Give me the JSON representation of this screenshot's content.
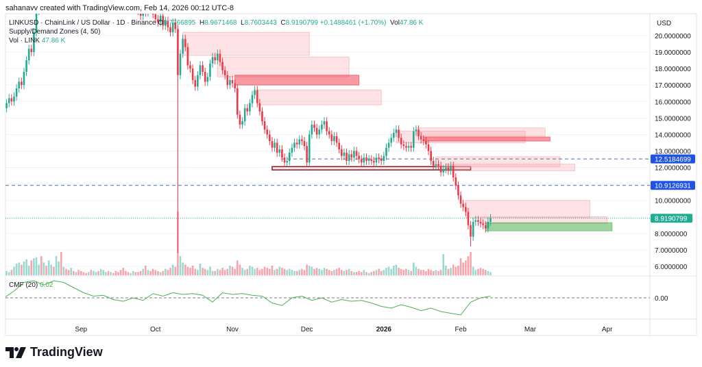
{
  "header": {
    "credit": "sahanavv created with TradingView.com, Feb 14, 2026 00:12 UTC-8"
  },
  "legend": {
    "symbol": "LINKUSD · ChainLink / US Dollar · 1D · Binance",
    "o_label": "O",
    "o": "8.7766895",
    "h_label": "H",
    "h": "8.9671468",
    "l_label": "L",
    "l": "8.7603443",
    "c_label": "C",
    "c": "8.9190799",
    "change": "+0.1488461 (+1.70%)",
    "vol_label": "Vol",
    "vol": "47.86 K",
    "indicator": "Supply/Demand Zones (4, 50)",
    "volume_label": "Vol · LINK",
    "volume_value": "47.86 K"
  },
  "cmf": {
    "label": "CMF (20)",
    "value": "0.02",
    "zero_label": "0.00",
    "color": "#4caf50",
    "step_days": 4,
    "values": [
      0.0,
      0.08,
      0.18,
      0.2,
      0.15,
      0.2,
      0.18,
      0.12,
      0.06,
      0.02,
      0.03,
      -0.02,
      -0.04,
      0.0,
      -0.03,
      0.05,
      0.02,
      0.06,
      0.04,
      0.05,
      0.03,
      -0.05,
      0.06,
      0.04,
      0.05,
      0.03,
      0.02,
      -0.06,
      -0.09,
      0.0,
      0.02,
      -0.03,
      0.0,
      -0.05,
      -0.02,
      -0.04,
      -0.03,
      -0.06,
      -0.1,
      -0.12,
      -0.08,
      -0.11,
      -0.15,
      -0.12,
      -0.16,
      -0.18,
      -0.2,
      -0.05,
      0.0,
      0.02
    ]
  },
  "price_axis": {
    "currency": "USD",
    "ticks": [
      "20.0000000",
      "19.0000000",
      "18.0000000",
      "17.0000000",
      "16.0000000",
      "15.0000000",
      "14.0000000",
      "13.0000000",
      "12.0000000",
      "10.0000000",
      "8.0000000",
      "7.0000000",
      "6.0000000"
    ],
    "tick_values": [
      20,
      19,
      18,
      17,
      16,
      15,
      14,
      13,
      12,
      10,
      8,
      7,
      6
    ]
  },
  "price_lines": [
    {
      "label": "12.5184699",
      "value": 12.5184699,
      "color": "#1e53e5",
      "style": "dashed"
    },
    {
      "label": "10.9126931",
      "value": 10.9126931,
      "color": "#1e53e5",
      "style": "dashed"
    },
    {
      "label": "8.9190799",
      "value": 8.9190799,
      "color": "#22ab94",
      "style": "dotted"
    }
  ],
  "time_axis": [
    {
      "label": "Sep",
      "date": "2025-09-01"
    },
    {
      "label": "Oct",
      "date": "2025-10-01"
    },
    {
      "label": "Nov",
      "date": "2025-11-01"
    },
    {
      "label": "Dec",
      "date": "2025-12-01"
    },
    {
      "label": "2026",
      "date": "2026-01-01",
      "bold": true
    },
    {
      "label": "Feb",
      "date": "2026-02-01"
    },
    {
      "label": "Mar",
      "date": "2026-03-01"
    },
    {
      "label": "Apr",
      "date": "2026-04-01"
    }
  ],
  "colors": {
    "up": "#22ab94",
    "down": "#f23645",
    "supply_light": "#f7a1a8",
    "supply_strong": "#f23645",
    "demand": "#4caf50",
    "outline": "#801922"
  },
  "chart_data": {
    "type": "candlestick",
    "start_date": "2025-08-01",
    "closes": [
      15.6,
      15.9,
      16.2,
      16.0,
      16.3,
      16.8,
      17.2,
      17.0,
      17.8,
      18.5,
      19.2,
      19.0,
      20.2,
      21.5,
      22.4,
      22.0,
      23.0,
      22.5,
      23.2,
      24.0,
      23.5,
      24.5,
      25.0,
      24.3,
      24.8,
      24.0,
      23.6,
      24.2,
      23.8,
      24.5,
      24.0,
      23.5,
      23.0,
      22.6,
      22.8,
      22.4,
      22.9,
      23.1,
      22.7,
      23.4,
      23.8,
      24.1,
      23.9,
      24.3,
      24.0,
      23.6,
      23.2,
      22.8,
      22.5,
      22.0,
      21.6,
      21.9,
      22.3,
      21.8,
      21.5,
      21.2,
      21.7,
      21.4,
      22.0,
      21.8,
      21.3,
      21.0,
      20.8,
      21.2,
      20.6,
      20.9,
      20.5,
      20.2,
      20.8,
      20.4,
      17.6,
      18.9,
      19.8,
      19.3,
      18.2,
      18.0,
      17.3,
      16.9,
      17.6,
      18.2,
      17.8,
      17.2,
      17.5,
      18.3,
      18.7,
      18.5,
      18.9,
      18.4,
      17.9,
      17.6,
      17.0,
      17.3,
      17.1,
      16.8,
      15.2,
      14.6,
      14.8,
      15.6,
      15.4,
      15.9,
      16.4,
      16.7,
      15.9,
      15.4,
      14.8,
      14.3,
      14.0,
      13.6,
      13.2,
      13.5,
      12.9,
      13.1,
      12.6,
      12.3,
      12.4,
      12.9,
      13.2,
      13.5,
      13.4,
      13.7,
      13.6,
      13.3,
      12.3,
      14.0,
      14.6,
      14.4,
      14.0,
      14.3,
      14.6,
      14.8,
      14.2,
      14.0,
      13.6,
      13.9,
      13.5,
      13.1,
      12.7,
      12.9,
      12.4,
      12.8,
      12.6,
      13.0,
      12.7,
      12.5,
      12.3,
      12.6,
      12.4,
      12.5,
      12.4,
      12.3,
      12.6,
      12.5,
      12.4,
      12.7,
      13.2,
      13.5,
      13.8,
      14.1,
      14.3,
      13.8,
      13.4,
      13.3,
      13.2,
      13.3,
      13.2,
      14.2,
      14.3,
      13.9,
      13.7,
      13.6,
      13.4,
      13.0,
      12.4,
      12.1,
      12.2,
      12.1,
      11.7,
      11.9,
      12.0,
      11.8,
      12.1,
      11.4,
      10.9,
      10.3,
      9.8,
      9.6,
      9.3,
      8.5,
      7.8,
      8.7,
      8.8,
      8.7,
      8.6,
      8.5,
      8.3,
      8.7,
      8.9190799
    ],
    "notable_lows": [
      {
        "date": "2025-10-10",
        "low": 6.8
      },
      {
        "date": "2026-02-05",
        "low": 7.2
      }
    ],
    "volumes_k": [
      3,
      4,
      3,
      5,
      8,
      11,
      12,
      10,
      13,
      15,
      9,
      14,
      16,
      17,
      10,
      18,
      12,
      9,
      14,
      10,
      8,
      18,
      13,
      22,
      8,
      6,
      5,
      7,
      4,
      3,
      5,
      4,
      3,
      2,
      3,
      5,
      4,
      3,
      4,
      6,
      5,
      3,
      4,
      3,
      2,
      4,
      3,
      5,
      7,
      4,
      3,
      2,
      4,
      3,
      3,
      4,
      6,
      9,
      5,
      4,
      6,
      5,
      4,
      3,
      4,
      6,
      5,
      7,
      10,
      8,
      60,
      18,
      12,
      10,
      8,
      7,
      9,
      6,
      5,
      11,
      7,
      6,
      5,
      8,
      4,
      4,
      6,
      5,
      7,
      5,
      6,
      9,
      8,
      6,
      14,
      10,
      7,
      5,
      6,
      9,
      8,
      6,
      7,
      5,
      6,
      8,
      7,
      6,
      9,
      5,
      6,
      8,
      7,
      6,
      5,
      6,
      5,
      4,
      4,
      5,
      6,
      5,
      10,
      9,
      8,
      6,
      7,
      6,
      5,
      7,
      6,
      5,
      4,
      5,
      6,
      7,
      5,
      4,
      5,
      6,
      4,
      3,
      3,
      4,
      3,
      5,
      3,
      2,
      3,
      4,
      5,
      6,
      4,
      5,
      7,
      8,
      6,
      9,
      10,
      7,
      6,
      5,
      6,
      5,
      4,
      12,
      8,
      6,
      5,
      5,
      4,
      6,
      5,
      4,
      5,
      4,
      5,
      20,
      9,
      6,
      7,
      10,
      8,
      9,
      16,
      12,
      14,
      18,
      22,
      8,
      5,
      6,
      7,
      6,
      5,
      4,
      3
    ],
    "zones": [
      {
        "type": "supply",
        "strength": "light",
        "top": 20.2,
        "bottom": 18.8,
        "start": "2025-10-12",
        "end": "2025-12-02"
      },
      {
        "type": "supply",
        "strength": "light",
        "top": 18.7,
        "bottom": 17.5,
        "start": "2025-10-26",
        "end": "2025-12-18"
      },
      {
        "type": "supply",
        "strength": "strong",
        "top": 17.6,
        "bottom": 17.0,
        "start": "2025-11-02",
        "end": "2025-12-22"
      },
      {
        "type": "supply",
        "strength": "light",
        "top": 16.7,
        "bottom": 15.8,
        "start": "2025-11-11",
        "end": "2025-12-31"
      },
      {
        "type": "outline",
        "strength": "strong",
        "top": 12.05,
        "bottom": 11.85,
        "start": "2025-11-17",
        "end": "2026-02-05"
      },
      {
        "type": "supply",
        "strength": "light",
        "top": 14.2,
        "bottom": 13.5,
        "start": "2026-01-06",
        "end": "2026-02-27"
      },
      {
        "type": "supply",
        "strength": "light",
        "top": 14.4,
        "bottom": 13.9,
        "start": "2026-01-14",
        "end": "2026-03-07"
      },
      {
        "type": "supply",
        "strength": "strong",
        "top": 13.85,
        "bottom": 13.6,
        "start": "2026-01-17",
        "end": "2026-03-09"
      },
      {
        "type": "supply",
        "strength": "light",
        "top": 12.65,
        "bottom": 12.05,
        "start": "2026-01-22",
        "end": "2026-03-13"
      },
      {
        "type": "supply",
        "strength": "light",
        "top": 12.2,
        "bottom": 11.8,
        "start": "2026-01-26",
        "end": "2026-03-19"
      },
      {
        "type": "supply",
        "strength": "light",
        "top": 10.0,
        "bottom": 8.95,
        "start": "2026-02-03",
        "end": "2026-03-25"
      },
      {
        "type": "supply",
        "strength": "light",
        "top": 9.0,
        "bottom": 8.6,
        "start": "2026-02-09",
        "end": "2026-04-01"
      },
      {
        "type": "demand",
        "strength": "strong",
        "top": 8.65,
        "bottom": 8.15,
        "start": "2026-02-11",
        "end": "2026-04-03"
      }
    ]
  },
  "brand": {
    "name": "TradingView"
  }
}
